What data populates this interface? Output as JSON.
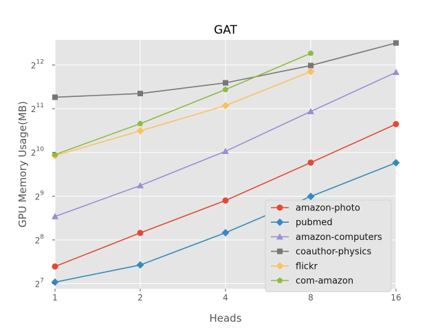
{
  "chart_data": {
    "type": "line",
    "title": "GAT",
    "xlabel": "Heads",
    "ylabel": "GPU Memory Usage(MB)",
    "x": [
      1,
      2,
      4,
      8,
      16
    ],
    "x_scale": "log2",
    "y_scale": "log2",
    "ylim": [
      118,
      6100
    ],
    "y_ticks": [
      {
        "base": "2",
        "exp": "7",
        "value": 128
      },
      {
        "base": "2",
        "exp": "8",
        "value": 256
      },
      {
        "base": "2",
        "exp": "9",
        "value": 512
      },
      {
        "base": "2",
        "exp": "10",
        "value": 1024
      },
      {
        "base": "2",
        "exp": "11",
        "value": 2048
      },
      {
        "base": "2",
        "exp": "12",
        "value": 4096
      }
    ],
    "grid": true,
    "legend_position": "lower-right",
    "series": [
      {
        "name": "amazon-photo",
        "color": "#E24A33",
        "marker": "circle",
        "values": [
          168,
          286,
          478,
          872,
          1605
        ]
      },
      {
        "name": "pubmed",
        "color": "#348ABD",
        "marker": "diamond",
        "values": [
          131,
          172,
          287,
          510,
          869
        ]
      },
      {
        "name": "amazon-computers",
        "color": "#988ED5",
        "marker": "triangle",
        "values": [
          371,
          606,
          1043,
          1961,
          3648
        ]
      },
      {
        "name": "coauthor-physics",
        "color": "#777777",
        "marker": "square",
        "values": [
          2458,
          2606,
          3087,
          4061,
          5808
        ]
      },
      {
        "name": "flickr",
        "color": "#FBC15E",
        "marker": "diamond",
        "values": [
          974,
          1442,
          2151,
          3694,
          null
        ]
      },
      {
        "name": "com-amazon",
        "color": "#8EBA42",
        "marker": "pentagon",
        "values": [
          990,
          1616,
          2775,
          4930,
          null
        ]
      }
    ]
  }
}
